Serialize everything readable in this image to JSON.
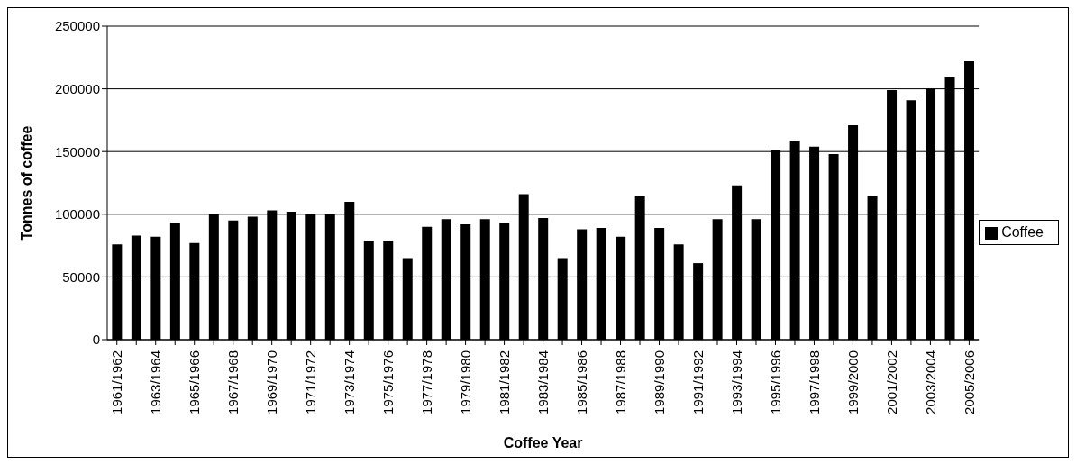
{
  "chart_data": {
    "type": "bar",
    "xlabel": "Coffee Year",
    "ylabel": "Tonnes of coffee",
    "categories": [
      "1961/1962",
      null,
      "1963/1964",
      null,
      "1965/1966",
      null,
      "1967/1968",
      null,
      "1969/1970",
      null,
      "1971/1972",
      null,
      "1973/1974",
      null,
      "1975/1976",
      null,
      "1977/1978",
      null,
      "1979/1980",
      null,
      "1981/1982",
      null,
      "1983/1984",
      null,
      "1985/1986",
      null,
      "1987/1988",
      null,
      "1989/1990",
      null,
      "1991/1992",
      null,
      "1993/1994",
      null,
      "1995/1996",
      null,
      "1997/1998",
      null,
      "1999/2000",
      null,
      "2001/2002",
      null,
      "2003/2004",
      null,
      "2005/2006"
    ],
    "series": [
      {
        "name": "Coffee",
        "color": "#000000",
        "values": [
          76000,
          83000,
          82000,
          93000,
          77000,
          100000,
          95000,
          98000,
          103000,
          102000,
          100000,
          100000,
          110000,
          79000,
          79000,
          65000,
          90000,
          96000,
          92000,
          96000,
          93000,
          116000,
          97000,
          65000,
          88000,
          89000,
          82000,
          115000,
          89000,
          76000,
          61000,
          96000,
          123000,
          96000,
          151000,
          158000,
          154000,
          148000,
          171000,
          115000,
          199000,
          191000,
          200000,
          209000,
          222000
        ]
      }
    ],
    "ylim": [
      0,
      250000
    ],
    "yticks": [
      0,
      50000,
      100000,
      150000,
      200000,
      250000
    ],
    "grid": "y",
    "legend": "right"
  }
}
